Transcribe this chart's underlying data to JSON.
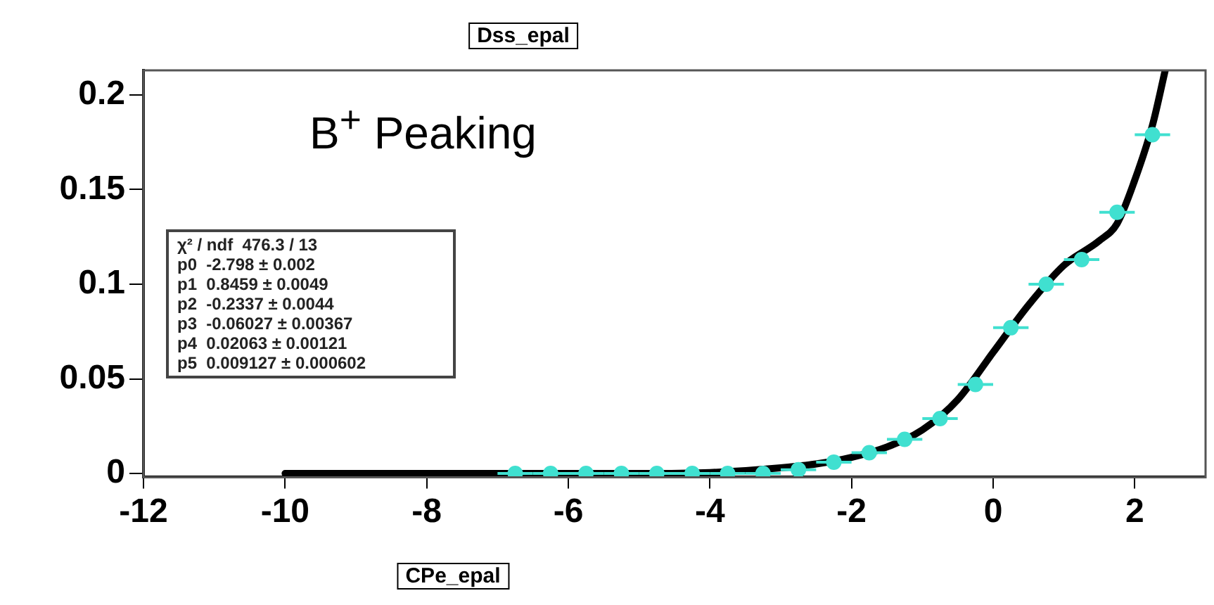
{
  "chart_data": {
    "type": "scatter",
    "title": "Dss_epal",
    "xlabel": "CPe_epal",
    "annotations": [
      "B$^{+}$ Peaking",
      "χ² / ndf  476.3 / 13",
      "p0  -2.798 ± 0.002",
      "p1  0.8459 ± 0.0049",
      "p2  -0.2337 ± 0.0044",
      "p3  -0.06027 ± 0.00367",
      "p4  0.02063 ± 0.00121",
      "p5  0.009127 ± 0.000602"
    ],
    "x": [
      -6.75,
      -6.25,
      -5.75,
      -5.25,
      -4.75,
      -4.25,
      -3.75,
      -3.25,
      -2.75,
      -2.25,
      -1.75,
      -1.25,
      -0.75,
      -0.25,
      0.25,
      0.75,
      1.25,
      1.75,
      2.25
    ],
    "series": [
      {
        "type": "scatter",
        "color": "#40e0d0",
        "marker": "circle",
        "values": [
          0,
          0,
          0,
          0,
          0,
          0,
          0,
          0,
          0.002,
          0.006,
          0.011,
          0.018,
          0.029,
          0.047,
          0.077,
          0.1,
          0.113,
          0.138,
          0.179
        ],
        "xerrors": [
          0.25,
          0.25,
          0.25,
          0.25,
          0.25,
          0.25,
          0.25,
          0.25,
          0.25,
          0.25,
          0.25,
          0.25,
          0.25,
          0.25,
          0.25,
          0.25,
          0.25,
          0.25,
          0.25
        ]
      },
      {
        "type": "line",
        "color": "#000000",
        "x": [
          -10,
          -8,
          -6,
          -5,
          -4,
          -3,
          -2.5,
          -2,
          -1.5,
          -1,
          -0.5,
          0,
          0.5,
          1,
          1.5,
          1.75,
          2,
          2.25,
          2.43
        ],
        "values": [
          0,
          0,
          0,
          0,
          0.0005,
          0.003,
          0.005,
          0.0085,
          0.014,
          0.023,
          0.039,
          0.064,
          0.089,
          0.11,
          0.123,
          0.132,
          0.155,
          0.184,
          0.213
        ]
      }
    ],
    "xlim": [
      -12,
      3
    ],
    "xticks": [
      -12,
      -10,
      -8,
      -6,
      -4,
      -2,
      0,
      2
    ],
    "ylim": [
      -0.002,
      0.213
    ],
    "yticks": [
      0,
      0.05,
      0.1,
      0.15,
      0.2
    ],
    "grid": false,
    "legend": false
  }
}
